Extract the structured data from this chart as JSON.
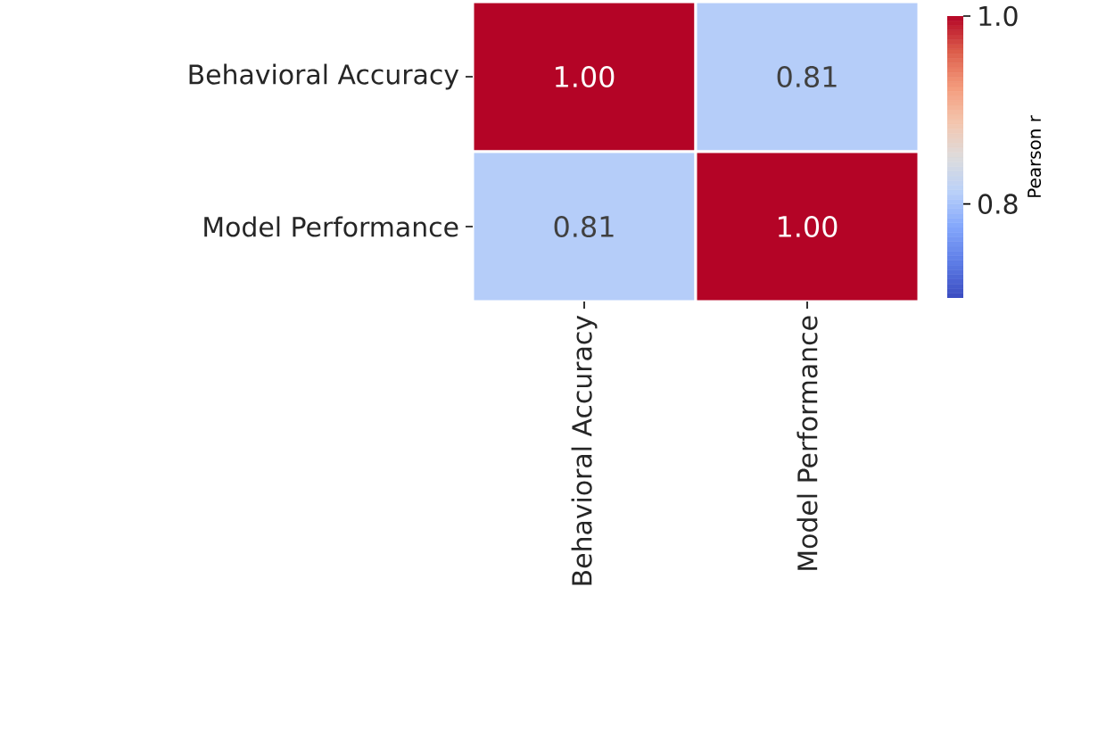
{
  "chart_data": {
    "type": "heatmap",
    "categories": [
      "Behavioral Accuracy",
      "Model Performance"
    ],
    "y_categories": [
      "Behavioral Accuracy",
      "Model Performance"
    ],
    "cells": [
      [
        1.0,
        0.81
      ],
      [
        0.81,
        1.0
      ]
    ],
    "cell_labels": [
      [
        "1.00",
        "0.81"
      ],
      [
        "0.81",
        "1.00"
      ]
    ],
    "clim": [
      0.7,
      1.0
    ],
    "cticks": [
      {
        "value": 0.8,
        "label": "0.8"
      },
      {
        "value": 1.0,
        "label": "1.0"
      }
    ],
    "clabel": "Pearson r"
  }
}
